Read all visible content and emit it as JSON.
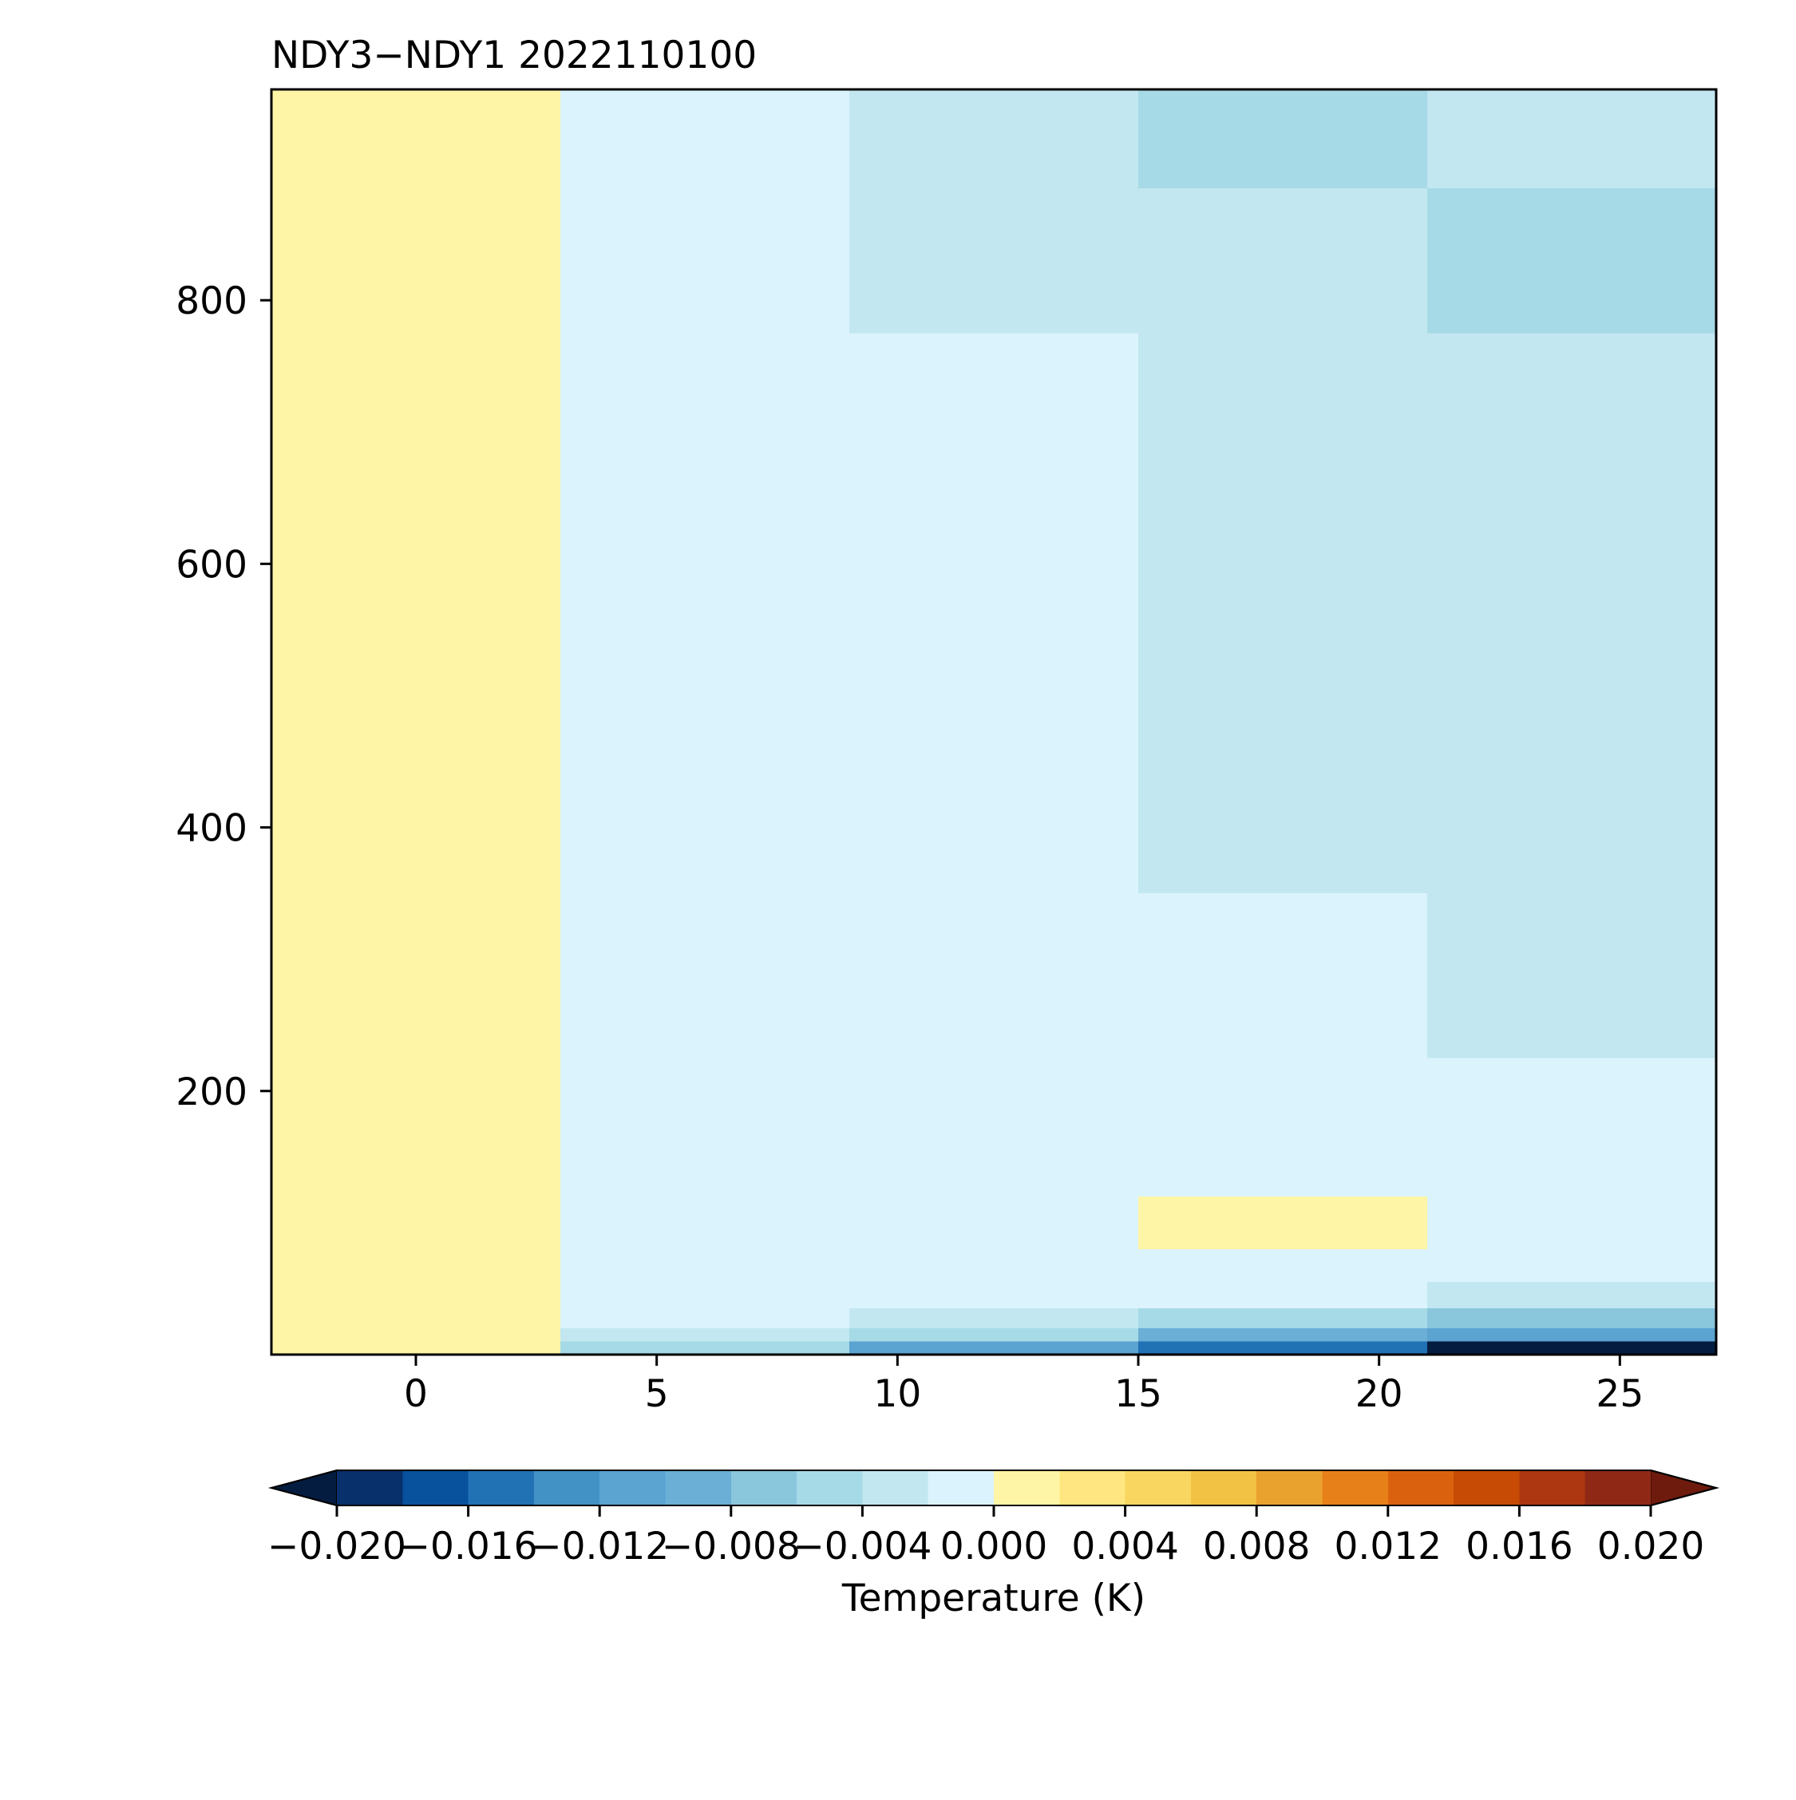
{
  "chart_data": {
    "type": "heatmap",
    "title": "NDY3−NDY1 2022110100",
    "xlabel": "",
    "ylabel": "",
    "xlim": [
      -3,
      27
    ],
    "ylim": [
      0,
      960
    ],
    "x_ticks": [
      0,
      5,
      10,
      15,
      20,
      25
    ],
    "x_tick_labels": [
      "0",
      "5",
      "10",
      "15",
      "20",
      "25"
    ],
    "y_ticks": [
      200,
      400,
      600,
      800
    ],
    "y_tick_labels": [
      "200",
      "400",
      "600",
      "800"
    ],
    "x_edges": [
      -3,
      3,
      9,
      15,
      21,
      27
    ],
    "cells": [
      {
        "x": [
          -3,
          3
        ],
        "y": [
          0,
          960
        ],
        "value": 0.001
      },
      {
        "x": [
          3,
          9
        ],
        "y": [
          0,
          10
        ],
        "value": -0.005
      },
      {
        "x": [
          3,
          9
        ],
        "y": [
          10,
          20
        ],
        "value": -0.003
      },
      {
        "x": [
          3,
          9
        ],
        "y": [
          20,
          960
        ],
        "value": -0.001
      },
      {
        "x": [
          9,
          15
        ],
        "y": [
          0,
          10
        ],
        "value": -0.011
      },
      {
        "x": [
          9,
          15
        ],
        "y": [
          10,
          20
        ],
        "value": -0.005
      },
      {
        "x": [
          9,
          15
        ],
        "y": [
          20,
          35
        ],
        "value": -0.003
      },
      {
        "x": [
          9,
          15
        ],
        "y": [
          35,
          775
        ],
        "value": -0.001
      },
      {
        "x": [
          9,
          15
        ],
        "y": [
          775,
          960
        ],
        "value": -0.003
      },
      {
        "x": [
          15,
          21
        ],
        "y": [
          0,
          10
        ],
        "value": -0.015
      },
      {
        "x": [
          15,
          21
        ],
        "y": [
          10,
          20
        ],
        "value": -0.009
      },
      {
        "x": [
          15,
          21
        ],
        "y": [
          20,
          35
        ],
        "value": -0.005
      },
      {
        "x": [
          15,
          21
        ],
        "y": [
          35,
          80
        ],
        "value": -0.001
      },
      {
        "x": [
          15,
          21
        ],
        "y": [
          80,
          120
        ],
        "value": 0.001
      },
      {
        "x": [
          15,
          21
        ],
        "y": [
          120,
          350
        ],
        "value": -0.001
      },
      {
        "x": [
          15,
          21
        ],
        "y": [
          350,
          885
        ],
        "value": -0.003
      },
      {
        "x": [
          15,
          21
        ],
        "y": [
          885,
          960
        ],
        "value": -0.005
      },
      {
        "x": [
          21,
          27
        ],
        "y": [
          0,
          10
        ],
        "value": -0.021
      },
      {
        "x": [
          21,
          27
        ],
        "y": [
          10,
          20
        ],
        "value": -0.011
      },
      {
        "x": [
          21,
          27
        ],
        "y": [
          20,
          35
        ],
        "value": -0.007
      },
      {
        "x": [
          21,
          27
        ],
        "y": [
          35,
          55
        ],
        "value": -0.003
      },
      {
        "x": [
          21,
          27
        ],
        "y": [
          55,
          225
        ],
        "value": -0.001
      },
      {
        "x": [
          21,
          27
        ],
        "y": [
          225,
          775
        ],
        "value": -0.003
      },
      {
        "x": [
          21,
          27
        ],
        "y": [
          775,
          885
        ],
        "value": -0.005
      },
      {
        "x": [
          21,
          27
        ],
        "y": [
          885,
          960
        ],
        "value": -0.003
      }
    ],
    "colorbar": {
      "label": "Temperature (K)",
      "orientation": "horizontal",
      "extend": "both",
      "boundaries": [
        -0.02,
        -0.018,
        -0.016,
        -0.014,
        -0.012,
        -0.01,
        -0.008,
        -0.006,
        -0.004,
        -0.002,
        0.0,
        0.002,
        0.004,
        0.006,
        0.008,
        0.01,
        0.012,
        0.014,
        0.016,
        0.018,
        0.02
      ],
      "colors": [
        "#08306b",
        "#08519c",
        "#2171b5",
        "#4292c6",
        "#5ba3d0",
        "#6baed6",
        "#8ac6dc",
        "#a6dae6",
        "#c2e7f0",
        "#dbf3fc",
        "#fff5a6",
        "#ffe680",
        "#f9d660",
        "#f1c243",
        "#eaa22f",
        "#e88019",
        "#da620e",
        "#c84b05",
        "#ad3710",
        "#8f2916"
      ],
      "under_color": "#041c40",
      "over_color": "#6e1b0e",
      "ticks": [
        -0.02,
        -0.016,
        -0.012,
        -0.008,
        -0.004,
        0.0,
        0.004,
        0.008,
        0.012,
        0.016,
        0.02
      ],
      "tick_labels": [
        "−0.020",
        "−0.016",
        "−0.012",
        "−0.008",
        "−0.004",
        "0.000",
        "0.004",
        "0.008",
        "0.012",
        "0.016",
        "0.020"
      ]
    }
  }
}
